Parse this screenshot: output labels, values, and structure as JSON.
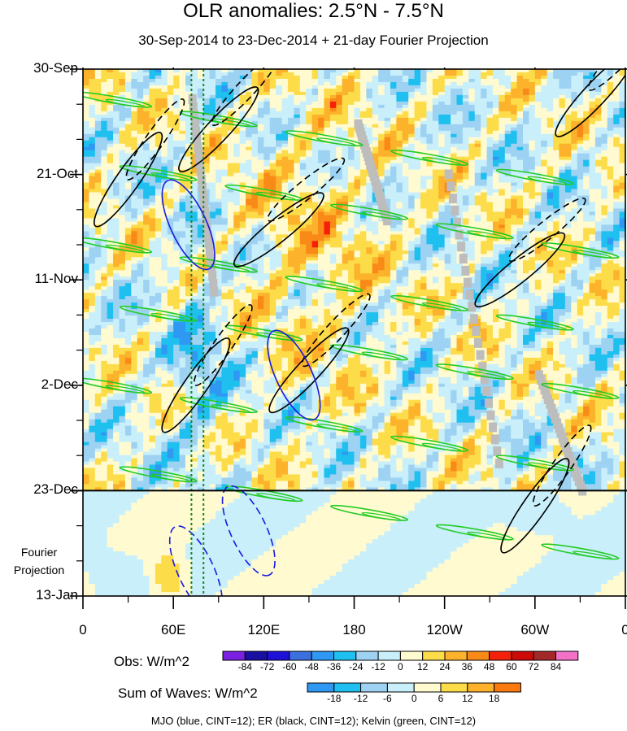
{
  "chart_data": {
    "type": "heatmap",
    "title": "OLR anomalies: 2.5°N - 7.5°N",
    "subtitle": "30-Sep-2014 to 23-Dec-2014 + 21-day Fourier Projection",
    "x_axis": {
      "range_deg_east": [
        0,
        360
      ],
      "ticks": [
        {
          "lon": 0,
          "label": "0"
        },
        {
          "lon": 60,
          "label": "60E"
        },
        {
          "lon": 120,
          "label": "120E"
        },
        {
          "lon": 180,
          "label": "180"
        },
        {
          "lon": 240,
          "label": "120W"
        },
        {
          "lon": 300,
          "label": "60W"
        },
        {
          "lon": 360,
          "label": "0"
        }
      ]
    },
    "y_axis": {
      "range_days": [
        0,
        105
      ],
      "ticks": [
        {
          "day": 0,
          "label": "30-Sep"
        },
        {
          "day": 21,
          "label": "21-Oct"
        },
        {
          "day": 42,
          "label": "11-Nov"
        },
        {
          "day": 63,
          "label": "2-Dec"
        },
        {
          "day": 84,
          "label": "23-Dec"
        },
        {
          "day": 105,
          "label": "13-Jan"
        }
      ]
    },
    "observation_end_day": 84,
    "projection_label": [
      "Fourier",
      "Projection"
    ],
    "reference_lines_lon": [
      72,
      80
    ],
    "obs_colorbar": {
      "label": "Obs: W/m^2",
      "levels": [
        "-84",
        "-72",
        "-60",
        "-48",
        "-36",
        "-24",
        "-12",
        "0",
        "12",
        "24",
        "36",
        "48",
        "60",
        "72",
        "84"
      ],
      "colors": [
        "#7b1fe0",
        "#1a0fa0",
        "#1f10d8",
        "#3c6fe0",
        "#2f98f2",
        "#1fc0f0",
        "#9ed2f2",
        "#c9effa",
        "#fffad0",
        "#fddc4a",
        "#fcb22a",
        "#fa8a18",
        "#f5200a",
        "#cd0a0a",
        "#a52828",
        "#f372c8"
      ]
    },
    "waves_colorbar": {
      "label": "Sum of Waves: W/m^2",
      "levels": [
        "-18",
        "-12",
        "-6",
        "0",
        "6",
        "12",
        "18"
      ],
      "colors": [
        "#2f98f2",
        "#1fc0f0",
        "#9ed2f2",
        "#c9effa",
        "#fffad0",
        "#fddc4a",
        "#fcb22a",
        "#fa7a10"
      ]
    },
    "series": [
      {
        "name": "MJO",
        "color": "blue",
        "cint": 12,
        "centers": [
          {
            "lon": 70,
            "day": 31
          },
          {
            "lon": 140,
            "day": 61
          },
          {
            "lon": 75,
            "day": 100
          },
          {
            "lon": 110,
            "day": 92
          }
        ]
      },
      {
        "name": "ER",
        "color": "black",
        "cint": 12,
        "centers": [
          {
            "lon": 30,
            "day": 22
          },
          {
            "lon": 90,
            "day": 12
          },
          {
            "lon": 130,
            "day": 32
          },
          {
            "lon": 75,
            "day": 63
          },
          {
            "lon": 150,
            "day": 60
          },
          {
            "lon": 290,
            "day": 40
          },
          {
            "lon": 300,
            "day": 87
          },
          {
            "lon": 340,
            "day": 5
          }
        ]
      },
      {
        "name": "Kelvin",
        "color": "green",
        "cint": 12,
        "bands_day_at_lon0": [
          5,
          18,
          34,
          46,
          62,
          78
        ]
      }
    ]
  },
  "footer": "MJO (blue, CINT=12); ER (black, CINT=12); Kelvin (green, CINT=12)"
}
